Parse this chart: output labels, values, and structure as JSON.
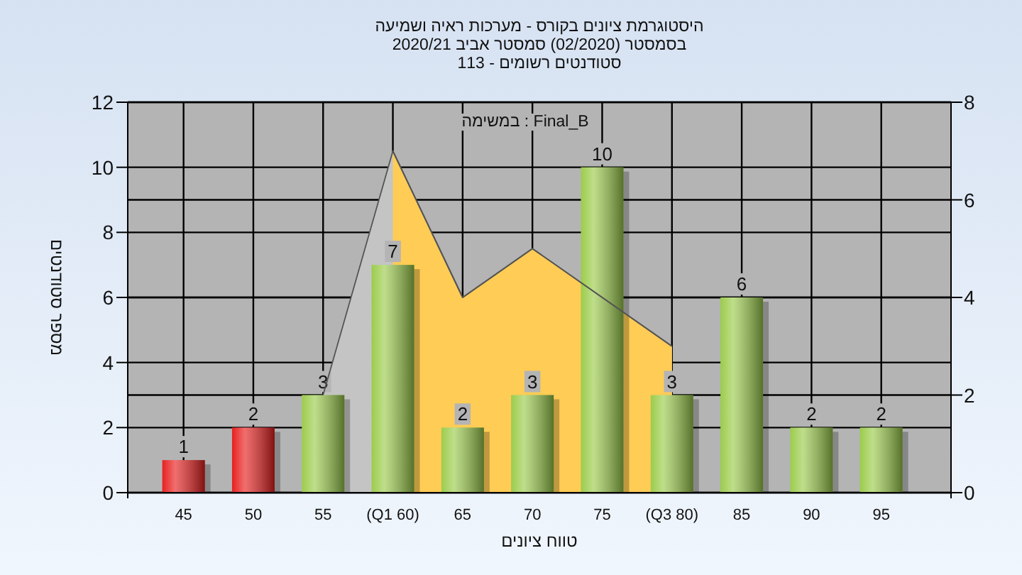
{
  "chart_data": {
    "type": "bar",
    "title": "היסטוגרמת ציונים בקורס - מערכות ראיה ושמיעה",
    "subtitle": "בסמסטר (02/2020) סמסטר אביב 2020/21\nסטודנטים רשומים - 113",
    "xlabel": "טווח ציונים",
    "ylabel": "מספר סטודנטים",
    "annotations": [
      "במשימה : Final_B"
    ],
    "categories": [
      "45",
      "50",
      "55",
      "(Q1 60)",
      "65",
      "70",
      "75",
      "(Q3 80)",
      "85",
      "90",
      "95"
    ],
    "series": [
      {
        "type": "area",
        "axis": "y2",
        "color": "#c4c4c4",
        "values": [
          null,
          null,
          2,
          7,
          4,
          5,
          null,
          3,
          null,
          null,
          null
        ]
      },
      {
        "type": "area",
        "axis": "y2",
        "color": "#ffcc55",
        "values": [
          null,
          null,
          null,
          7,
          4,
          5,
          null,
          3,
          null,
          null,
          null
        ]
      },
      {
        "colors": [
          "#e82020",
          "#e82020",
          "#9ccc4c",
          "#9ccc4c",
          "#9ccc4c",
          "#9ccc4c",
          "#9ccc4c",
          "#9ccc4c",
          "#9ccc4c",
          "#9ccc4c",
          "#9ccc4c"
        ],
        "values": [
          1,
          2,
          3,
          7,
          2,
          3,
          10,
          3,
          6,
          2,
          2
        ],
        "value_labels": [
          "1",
          "2",
          "3",
          "7",
          "2",
          "3",
          "10",
          "3",
          "6",
          "2",
          "2"
        ]
      }
    ],
    "ylim": [
      0,
      12
    ],
    "yticks": [
      0,
      2,
      4,
      6,
      8,
      10,
      12
    ],
    "y2lim": [
      0,
      8
    ],
    "y2ticks": [
      0,
      2,
      4,
      6,
      8
    ],
    "grid": true
  }
}
